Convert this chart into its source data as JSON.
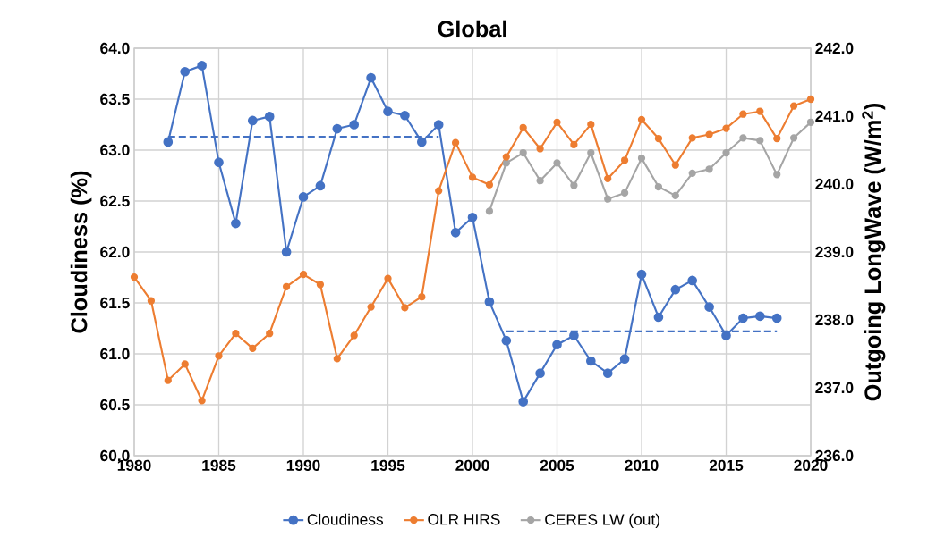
{
  "chart_data": {
    "type": "line",
    "title": "Global",
    "ylabel": "Cloudiness (%)",
    "y2label": "Outgoing LongWave (W/m$^{2}$)",
    "xlim": [
      1980,
      2020
    ],
    "xticks": [
      1980,
      1985,
      1990,
      1995,
      2000,
      2005,
      2010,
      2015,
      2020
    ],
    "ylim": [
      60,
      64
    ],
    "yticks": [
      {
        "value": 60,
        "label": "60.0"
      },
      {
        "value": 60.5,
        "label": "60.5"
      },
      {
        "value": 61,
        "label": "61.0"
      },
      {
        "value": 61.5,
        "label": "61.5"
      },
      {
        "value": 62,
        "label": "62.0"
      },
      {
        "value": 62.5,
        "label": "62.5"
      },
      {
        "value": 63,
        "label": "63.0"
      },
      {
        "value": 63.5,
        "label": "63.5"
      },
      {
        "value": 64,
        "label": "64.0"
      }
    ],
    "y2lim": [
      236,
      242
    ],
    "y2ticks": [
      {
        "value": 236,
        "label": "236.0"
      },
      {
        "value": 237,
        "label": "237.0"
      },
      {
        "value": 238,
        "label": "238.0"
      },
      {
        "value": 239,
        "label": "239.0"
      },
      {
        "value": 240,
        "label": "240.0"
      },
      {
        "value": 241,
        "label": "241.0"
      },
      {
        "value": 242,
        "label": "242.0"
      }
    ],
    "grid": true,
    "legend": "bottom",
    "marker": "circle",
    "line_style": "solid",
    "series": [
      {
        "name": "Cloudiness",
        "color": "#4472c4",
        "x": [
          1982,
          1983,
          1984,
          1985,
          1986,
          1987,
          1988,
          1989,
          1990,
          1991,
          1992,
          1993,
          1994,
          1995,
          1996,
          1997,
          1998,
          1999,
          2000,
          2001,
          2002,
          2003,
          2004,
          2005,
          2006,
          2007,
          2008,
          2009,
          2010,
          2011,
          2012,
          2013,
          2014,
          2015,
          2016,
          2017,
          2018
        ],
        "values": [
          63.08,
          63.77,
          63.83,
          62.88,
          62.28,
          63.29,
          63.33,
          62.0,
          62.54,
          62.65,
          63.21,
          63.25,
          63.71,
          63.38,
          63.34,
          63.08,
          63.25,
          62.19,
          62.34,
          61.51,
          61.13,
          60.53,
          60.81,
          61.09,
          61.18,
          60.93,
          60.81,
          60.95,
          61.78,
          61.36,
          61.63,
          61.72,
          61.46,
          61.18,
          61.35,
          61.37,
          61.35
        ]
      },
      {
        "name": "OLR HIRS",
        "color": "#ed7d31",
        "axis": "y2",
        "x": [
          1980,
          1981,
          1982,
          1983,
          1984,
          1985,
          1986,
          1987,
          1988,
          1989,
          1990,
          1991,
          1992,
          1993,
          1994,
          1995,
          1996,
          1997,
          1998,
          1999,
          2000,
          2001,
          2002,
          2003,
          2004,
          2005,
          2006,
          2007,
          2008,
          2009,
          2010,
          2011,
          2012,
          2013,
          2014,
          2015,
          2016,
          2017,
          2018,
          2019,
          2020
        ],
        "values": [
          238.63,
          238.28,
          237.11,
          237.35,
          236.81,
          237.47,
          237.8,
          237.58,
          237.8,
          238.49,
          238.67,
          238.52,
          237.43,
          237.77,
          238.19,
          238.61,
          238.18,
          238.34,
          239.9,
          240.61,
          240.1,
          239.99,
          240.4,
          240.83,
          240.52,
          240.91,
          240.58,
          240.88,
          240.08,
          240.35,
          240.95,
          240.67,
          240.28,
          240.68,
          240.73,
          240.82,
          241.03,
          241.07,
          240.67,
          241.15,
          241.25
        ]
      },
      {
        "name": "CERES LW (out)",
        "color": "#a5a5a5",
        "axis": "y2",
        "x": [
          2001,
          2002,
          2003,
          2004,
          2005,
          2006,
          2007,
          2008,
          2009,
          2010,
          2011,
          2012,
          2013,
          2014,
          2015,
          2016,
          2017,
          2018,
          2019,
          2020
        ],
        "values": [
          239.6,
          240.31,
          240.46,
          240.05,
          240.31,
          239.98,
          240.46,
          239.78,
          239.87,
          240.38,
          239.96,
          239.83,
          240.16,
          240.22,
          240.46,
          240.68,
          240.64,
          240.14,
          240.68,
          240.91
        ]
      },
      {
        "color": "#4472c4",
        "line_style": "dashed",
        "marker": "none",
        "x": [
          1982,
          1998
        ],
        "values": [
          63.13,
          63.13
        ]
      },
      {
        "color": "#4472c4",
        "line_style": "dashed",
        "marker": "none",
        "x": [
          2002,
          2018
        ],
        "values": [
          61.22,
          61.22
        ]
      }
    ]
  }
}
